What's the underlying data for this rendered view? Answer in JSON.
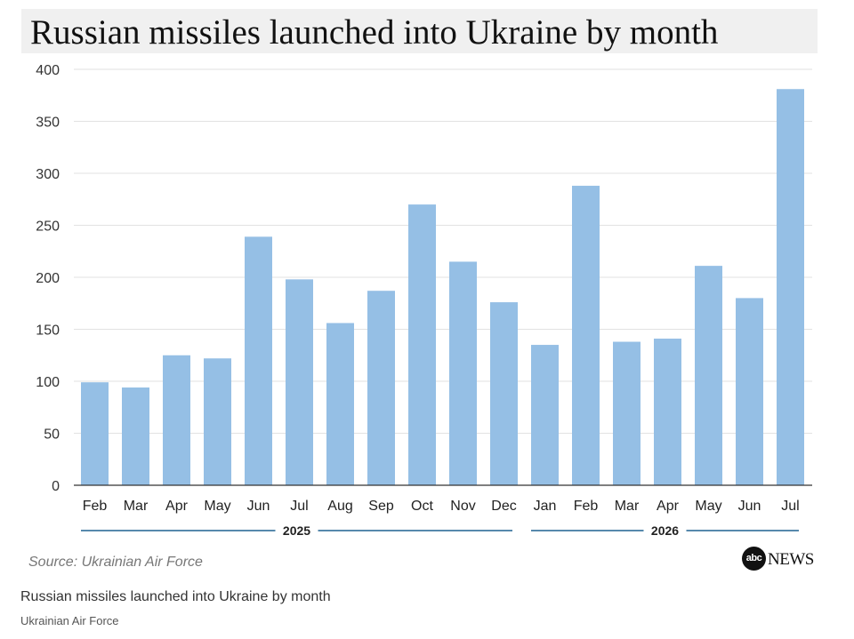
{
  "header": {
    "title": "Russian missiles launched into Ukraine by month"
  },
  "source_note": "Source: Ukrainian Air Force",
  "logo": {
    "mark": "abc",
    "text": "NEWS"
  },
  "caption": {
    "title": "Russian missiles launched into Ukraine by month",
    "credit": "Ukrainian Air Force"
  },
  "colors": {
    "bar": "#95bfe5",
    "year_line": "#1f6291",
    "grid": "#e2e2e2",
    "axis": "#333333"
  },
  "chart_data": {
    "type": "bar",
    "title": "Russian missiles launched into Ukraine by month",
    "xlabel": "",
    "ylabel": "",
    "ylim": [
      0,
      400
    ],
    "yticks": [
      0,
      50,
      100,
      150,
      200,
      250,
      300,
      350,
      400
    ],
    "grid": true,
    "categories": [
      "Feb",
      "Mar",
      "Apr",
      "May",
      "Jun",
      "Jul",
      "Aug",
      "Sep",
      "Oct",
      "Nov",
      "Dec",
      "Jan",
      "Feb",
      "Mar",
      "Apr",
      "May",
      "Jun",
      "Jul"
    ],
    "values": [
      99,
      94,
      125,
      122,
      239,
      198,
      156,
      187,
      270,
      215,
      176,
      135,
      288,
      138,
      141,
      211,
      180,
      381
    ],
    "year_groups": [
      {
        "label": "2025",
        "first_index": 0,
        "last_index": 10
      },
      {
        "label": "2026",
        "first_index": 11,
        "last_index": 17
      }
    ]
  }
}
